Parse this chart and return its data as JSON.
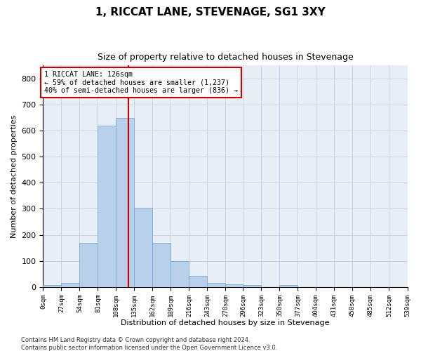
{
  "title": "1, RICCAT LANE, STEVENAGE, SG1 3XY",
  "subtitle": "Size of property relative to detached houses in Stevenage",
  "xlabel": "Distribution of detached houses by size in Stevenage",
  "ylabel": "Number of detached properties",
  "bin_edges": [
    0,
    27,
    54,
    81,
    108,
    135,
    162,
    189,
    216,
    243,
    270,
    296,
    323,
    350,
    377,
    404,
    431,
    458,
    485,
    512,
    539
  ],
  "bar_heights": [
    8,
    15,
    170,
    620,
    650,
    305,
    170,
    98,
    42,
    15,
    10,
    8,
    0,
    7,
    0,
    0,
    0,
    0,
    0,
    0
  ],
  "bar_color": "#b8d0ea",
  "bar_edge_color": "#7aadd4",
  "vline_color": "#cc0000",
  "vline_x": 126,
  "annotation_text": "1 RICCAT LANE: 126sqm\n← 59% of detached houses are smaller (1,237)\n40% of semi-detached houses are larger (836) →",
  "annotation_box_color": "#ffffff",
  "annotation_box_edge": "#cc0000",
  "ylim": [
    0,
    850
  ],
  "yticks": [
    0,
    100,
    200,
    300,
    400,
    500,
    600,
    700,
    800
  ],
  "tick_labels": [
    "0sqm",
    "27sqm",
    "54sqm",
    "81sqm",
    "108sqm",
    "135sqm",
    "162sqm",
    "189sqm",
    "216sqm",
    "243sqm",
    "270sqm",
    "296sqm",
    "323sqm",
    "350sqm",
    "377sqm",
    "404sqm",
    "431sqm",
    "458sqm",
    "485sqm",
    "512sqm",
    "539sqm"
  ],
  "footer": "Contains HM Land Registry data © Crown copyright and database right 2024.\nContains public sector information licensed under the Open Government Licence v3.0.",
  "grid_color": "#c8d4e8",
  "bg_color": "#e8eef6"
}
